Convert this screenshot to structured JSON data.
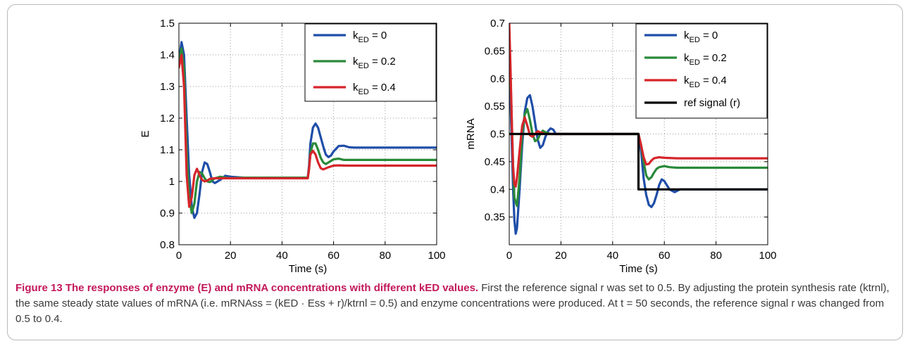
{
  "caption": {
    "title": "Figure 13 The responses of enzyme (E) and mRNA concentrations with different kED values.",
    "body": "First the reference signal r was set to 0.5. By adjusting the protein synthesis rate (ktrnl), the same steady state values of mRNA (i.e. mRNAss = (kED · Ess + r)/ktrnl = 0.5) and enzyme concentrations were produced. At t = 50 seconds, the reference signal r was changed from 0.5 to 0.4."
  },
  "chart_data": [
    {
      "type": "line",
      "xlabel": "Time (s)",
      "ylabel": "E",
      "xlim": [
        0,
        100
      ],
      "ylim": [
        0.8,
        1.5
      ],
      "xticks": [
        "0",
        "20",
        "40",
        "60",
        "80",
        "100"
      ],
      "yticks": [
        "0.8",
        "0.9",
        "1",
        "1.1",
        "1.2",
        "1.3",
        "1.4",
        "1.5"
      ],
      "grid": true,
      "legend_position": "top-right",
      "series": [
        {
          "name": "kED = 0",
          "legend_main": "k",
          "legend_sub": "ED",
          "legend_value": " = 0",
          "color": "#1f4ea8",
          "x": [
            0,
            1,
            2,
            3,
            4,
            5,
            6,
            7,
            8,
            9,
            10,
            11,
            12,
            13,
            14,
            16,
            18,
            20,
            25,
            30,
            40,
            50,
            50.5,
            51,
            52,
            53,
            54,
            55,
            56,
            57,
            58,
            59,
            60,
            62,
            64,
            66,
            68,
            70,
            75,
            80,
            90,
            100
          ],
          "y": [
            1.38,
            1.44,
            1.4,
            1.2,
            1.02,
            0.92,
            0.885,
            0.9,
            0.96,
            1.03,
            1.06,
            1.055,
            1.03,
            1.0,
            0.995,
            1.005,
            1.018,
            1.015,
            1.012,
            1.012,
            1.012,
            1.012,
            1.05,
            1.12,
            1.17,
            1.183,
            1.17,
            1.14,
            1.11,
            1.085,
            1.077,
            1.082,
            1.095,
            1.112,
            1.113,
            1.108,
            1.107,
            1.107,
            1.107,
            1.107,
            1.107,
            1.107
          ]
        },
        {
          "name": "kED = 0.2",
          "legend_main": "k",
          "legend_sub": "ED",
          "legend_value": " = 0.2",
          "color": "#2a8a3a",
          "x": [
            0,
            1,
            2,
            3,
            4,
            5,
            6,
            7,
            8,
            9,
            10,
            11,
            12,
            14,
            16,
            18,
            20,
            25,
            30,
            40,
            50,
            50.5,
            51,
            52,
            53,
            54,
            55,
            56,
            57,
            58,
            60,
            62,
            64,
            66,
            70,
            80,
            90,
            100
          ],
          "y": [
            1.38,
            1.42,
            1.36,
            1.1,
            0.95,
            0.9,
            0.93,
            1.0,
            1.03,
            1.025,
            1.01,
            1.0,
            0.998,
            1.01,
            1.015,
            1.012,
            1.01,
            1.012,
            1.012,
            1.012,
            1.012,
            1.04,
            1.09,
            1.12,
            1.12,
            1.1,
            1.075,
            1.06,
            1.055,
            1.06,
            1.07,
            1.072,
            1.068,
            1.068,
            1.068,
            1.068,
            1.068,
            1.068
          ]
        },
        {
          "name": "kED = 0.4",
          "legend_main": "k",
          "legend_sub": "ED",
          "legend_value": " = 0.4",
          "color": "#d6252b",
          "x": [
            0,
            1,
            2,
            3,
            4,
            5,
            6,
            7,
            8,
            9,
            10,
            11,
            12,
            14,
            16,
            18,
            20,
            25,
            30,
            40,
            50,
            50.5,
            51,
            52,
            53,
            54,
            55,
            56,
            58,
            60,
            62,
            65,
            70,
            80,
            90,
            100
          ],
          "y": [
            1.36,
            1.4,
            1.3,
            1.02,
            0.92,
            0.95,
            1.02,
            1.04,
            1.02,
            1.005,
            1.0,
            1.003,
            1.008,
            1.01,
            1.01,
            1.01,
            1.01,
            1.01,
            1.01,
            1.01,
            1.01,
            1.04,
            1.085,
            1.097,
            1.085,
            1.06,
            1.042,
            1.038,
            1.045,
            1.05,
            1.051,
            1.05,
            1.05,
            1.05,
            1.05,
            1.05
          ]
        }
      ]
    },
    {
      "type": "line",
      "xlabel": "Time (s)",
      "ylabel": "mRNA",
      "xlim": [
        0,
        100
      ],
      "ylim": [
        0.3,
        0.7
      ],
      "xticks": [
        "0",
        "20",
        "40",
        "60",
        "80",
        "100"
      ],
      "yticks": [
        "0.35",
        "0.4",
        "0.45",
        "0.5",
        "0.55",
        "0.6",
        "0.65",
        "0.7"
      ],
      "ytick_values": [
        0.35,
        0.4,
        0.45,
        0.5,
        0.55,
        0.6,
        0.65,
        0.7
      ],
      "grid": true,
      "legend_position": "top-right",
      "series": [
        {
          "name": "kED = 0",
          "legend_main": "k",
          "legend_sub": "ED",
          "legend_value": " = 0",
          "color": "#1f4ea8",
          "x": [
            0,
            0.5,
            1,
            1.5,
            2,
            2.5,
            3,
            4,
            5,
            6,
            7,
            8,
            9,
            10,
            11,
            12,
            13,
            14,
            15,
            16,
            17,
            18,
            20,
            25,
            30,
            40,
            50,
            51,
            52,
            53,
            54,
            55,
            56,
            57,
            58,
            59,
            60,
            62,
            64,
            66,
            70,
            80,
            90,
            100
          ],
          "y": [
            0.62,
            0.56,
            0.48,
            0.4,
            0.345,
            0.32,
            0.33,
            0.4,
            0.48,
            0.54,
            0.565,
            0.57,
            0.55,
            0.52,
            0.49,
            0.475,
            0.48,
            0.495,
            0.505,
            0.51,
            0.508,
            0.5,
            0.5,
            0.5,
            0.5,
            0.5,
            0.5,
            0.47,
            0.42,
            0.39,
            0.372,
            0.368,
            0.375,
            0.39,
            0.408,
            0.418,
            0.415,
            0.4,
            0.395,
            0.4,
            0.4,
            0.4,
            0.4,
            0.4
          ]
        },
        {
          "name": "kED = 0.2",
          "legend_main": "k",
          "legend_sub": "ED",
          "legend_value": " = 0.2",
          "color": "#2a8a3a",
          "x": [
            0,
            0.5,
            1,
            1.5,
            2,
            3,
            4,
            5,
            6,
            7,
            8,
            9,
            10,
            11,
            12,
            13,
            14,
            16,
            18,
            20,
            30,
            40,
            50,
            51,
            52,
            53,
            54,
            55,
            56,
            57,
            58,
            60,
            62,
            65,
            70,
            80,
            90,
            100
          ],
          "y": [
            0.65,
            0.6,
            0.52,
            0.44,
            0.385,
            0.37,
            0.42,
            0.5,
            0.535,
            0.545,
            0.525,
            0.5,
            0.487,
            0.49,
            0.5,
            0.506,
            0.503,
            0.5,
            0.5,
            0.5,
            0.5,
            0.5,
            0.5,
            0.48,
            0.45,
            0.425,
            0.418,
            0.422,
            0.43,
            0.437,
            0.44,
            0.442,
            0.44,
            0.439,
            0.439,
            0.439,
            0.439,
            0.439
          ]
        },
        {
          "name": "kED = 0.4",
          "legend_main": "k",
          "legend_sub": "ED",
          "legend_value": " = 0.4",
          "color": "#d6252b",
          "x": [
            0,
            0.5,
            1,
            1.5,
            2,
            2.5,
            3,
            4,
            5,
            6,
            7,
            8,
            9,
            10,
            11,
            12,
            14,
            16,
            18,
            20,
            30,
            40,
            50,
            51,
            52,
            53,
            54,
            55,
            56,
            58,
            60,
            65,
            70,
            80,
            90,
            100
          ],
          "y": [
            0.7,
            0.62,
            0.52,
            0.44,
            0.41,
            0.405,
            0.42,
            0.47,
            0.515,
            0.53,
            0.515,
            0.498,
            0.495,
            0.5,
            0.505,
            0.503,
            0.5,
            0.5,
            0.5,
            0.5,
            0.5,
            0.5,
            0.5,
            0.48,
            0.458,
            0.445,
            0.446,
            0.452,
            0.456,
            0.458,
            0.457,
            0.456,
            0.456,
            0.456,
            0.456,
            0.456
          ]
        },
        {
          "name": "ref signal (r)",
          "legend_main": "ref signal (r)",
          "legend_sub": "",
          "legend_value": "",
          "color": "#000000",
          "x": [
            0,
            50,
            50,
            100
          ],
          "y": [
            0.5,
            0.5,
            0.4,
            0.4
          ]
        }
      ]
    }
  ]
}
